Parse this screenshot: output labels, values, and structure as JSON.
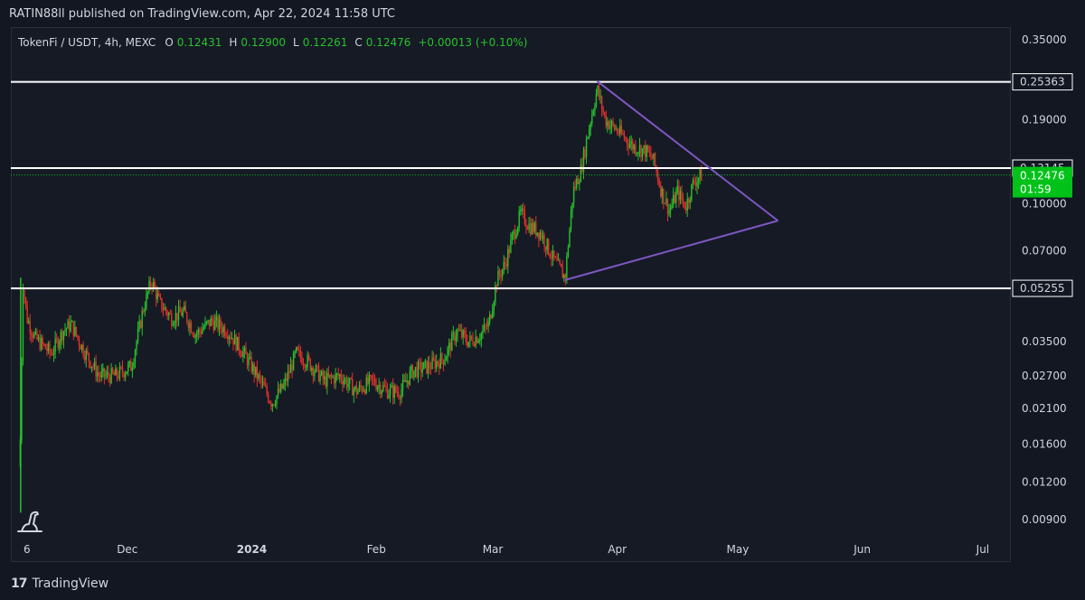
{
  "header": {
    "published": "RATIN88ll published on TradingView.com, Apr 22, 2024 11:58 UTC"
  },
  "legend": {
    "symbol": "TokenFi / USDT, 4h, MEXC",
    "open_key": "O",
    "open": "0.12431",
    "high_key": "H",
    "high": "0.12900",
    "low_key": "L",
    "low": "0.12261",
    "close_key": "C",
    "close": "0.12476",
    "change": "+0.00013 (+0.10%)"
  },
  "footer": {
    "brand_mark": "17",
    "brand": "TradingView"
  },
  "colors": {
    "background": "#131722",
    "up": "#26c22a",
    "down": "#e0312b",
    "level_line": "#ffffff",
    "triangle": "#7e57c2",
    "current_price_bg": "#00c218"
  },
  "chart_data": {
    "type": "candlestick",
    "symbol": "TokenFi / USDT",
    "interval": "4h",
    "exchange": "MEXC",
    "y_scale": "log",
    "ylim": [
      0.0078,
      0.385
    ],
    "y_ticks": [
      "0.35000",
      "0.19000",
      "0.10000",
      "0.07000",
      "0.03500",
      "0.02700",
      "0.02100",
      "0.01600",
      "0.01200",
      "0.00900"
    ],
    "y_tick_values": [
      0.35,
      0.19,
      0.1,
      0.07,
      0.035,
      0.027,
      0.021,
      0.016,
      0.012,
      0.009
    ],
    "x_ticks": [
      {
        "label": "6",
        "date": "2023-11-06",
        "bold": false
      },
      {
        "label": "Dec",
        "date": "2023-12-01",
        "bold": false
      },
      {
        "label": "2024",
        "date": "2024-01-01",
        "bold": true
      },
      {
        "label": "Feb",
        "date": "2024-02-01",
        "bold": false
      },
      {
        "label": "Mar",
        "date": "2024-03-01",
        "bold": false
      },
      {
        "label": "Apr",
        "date": "2024-04-01",
        "bold": false
      },
      {
        "label": "May",
        "date": "2024-05-01",
        "bold": false
      },
      {
        "label": "Jun",
        "date": "2024-06-01",
        "bold": false
      },
      {
        "label": "Jul",
        "date": "2024-07-01",
        "bold": false
      }
    ],
    "xlim": [
      "2023-11-02",
      "2024-07-08"
    ],
    "horizontal_levels": [
      {
        "value": 0.25363,
        "label": "0.25363"
      },
      {
        "value": 0.13145,
        "label": "0.13145"
      },
      {
        "value": 0.05255,
        "label": "0.05255"
      }
    ],
    "current_price": {
      "value": 0.12476,
      "label": "0.12476",
      "countdown": "01:59"
    },
    "triangle": {
      "upper": [
        {
          "date": "2024-03-27",
          "value": 0.255
        },
        {
          "date": "2024-05-11",
          "value": 0.088
        }
      ],
      "lower": [
        {
          "date": "2024-03-19",
          "value": 0.056
        },
        {
          "date": "2024-05-11",
          "value": 0.088
        }
      ]
    },
    "price_path": [
      {
        "date": "2023-11-04",
        "value": 0.009
      },
      {
        "date": "2023-11-05",
        "value": 0.055
      },
      {
        "date": "2023-11-06",
        "value": 0.042
      },
      {
        "date": "2023-11-08",
        "value": 0.036
      },
      {
        "date": "2023-11-12",
        "value": 0.032
      },
      {
        "date": "2023-11-15",
        "value": 0.038
      },
      {
        "date": "2023-11-17",
        "value": 0.04
      },
      {
        "date": "2023-11-20",
        "value": 0.033
      },
      {
        "date": "2023-11-24",
        "value": 0.027
      },
      {
        "date": "2023-11-28",
        "value": 0.027
      },
      {
        "date": "2023-12-02",
        "value": 0.029
      },
      {
        "date": "2023-12-05",
        "value": 0.045
      },
      {
        "date": "2023-12-07",
        "value": 0.056
      },
      {
        "date": "2023-12-09",
        "value": 0.047
      },
      {
        "date": "2023-12-12",
        "value": 0.042
      },
      {
        "date": "2023-12-15",
        "value": 0.044
      },
      {
        "date": "2023-12-18",
        "value": 0.037
      },
      {
        "date": "2023-12-22",
        "value": 0.041
      },
      {
        "date": "2023-12-26",
        "value": 0.038
      },
      {
        "date": "2023-12-30",
        "value": 0.032
      },
      {
        "date": "2024-01-03",
        "value": 0.026
      },
      {
        "date": "2024-01-06",
        "value": 0.022
      },
      {
        "date": "2024-01-09",
        "value": 0.025
      },
      {
        "date": "2024-01-12",
        "value": 0.032
      },
      {
        "date": "2024-01-15",
        "value": 0.03
      },
      {
        "date": "2024-01-19",
        "value": 0.026
      },
      {
        "date": "2024-01-23",
        "value": 0.027
      },
      {
        "date": "2024-01-27",
        "value": 0.024
      },
      {
        "date": "2024-01-31",
        "value": 0.026
      },
      {
        "date": "2024-02-04",
        "value": 0.024
      },
      {
        "date": "2024-02-07",
        "value": 0.024
      },
      {
        "date": "2024-02-10",
        "value": 0.028
      },
      {
        "date": "2024-02-14",
        "value": 0.029
      },
      {
        "date": "2024-02-18",
        "value": 0.031
      },
      {
        "date": "2024-02-21",
        "value": 0.038
      },
      {
        "date": "2024-02-24",
        "value": 0.035
      },
      {
        "date": "2024-02-27",
        "value": 0.037
      },
      {
        "date": "2024-02-29",
        "value": 0.04
      },
      {
        "date": "2024-03-02",
        "value": 0.056
      },
      {
        "date": "2024-03-04",
        "value": 0.063
      },
      {
        "date": "2024-03-06",
        "value": 0.078
      },
      {
        "date": "2024-03-08",
        "value": 0.093
      },
      {
        "date": "2024-03-10",
        "value": 0.085
      },
      {
        "date": "2024-03-13",
        "value": 0.08
      },
      {
        "date": "2024-03-16",
        "value": 0.066
      },
      {
        "date": "2024-03-19",
        "value": 0.057
      },
      {
        "date": "2024-03-21",
        "value": 0.11
      },
      {
        "date": "2024-03-23",
        "value": 0.13
      },
      {
        "date": "2024-03-25",
        "value": 0.18
      },
      {
        "date": "2024-03-27",
        "value": 0.24
      },
      {
        "date": "2024-03-29",
        "value": 0.19
      },
      {
        "date": "2024-04-02",
        "value": 0.17
      },
      {
        "date": "2024-04-05",
        "value": 0.155
      },
      {
        "date": "2024-04-08",
        "value": 0.15
      },
      {
        "date": "2024-04-10",
        "value": 0.14
      },
      {
        "date": "2024-04-12",
        "value": 0.11
      },
      {
        "date": "2024-04-14",
        "value": 0.095
      },
      {
        "date": "2024-04-16",
        "value": 0.11
      },
      {
        "date": "2024-04-18",
        "value": 0.098
      },
      {
        "date": "2024-04-20",
        "value": 0.118
      },
      {
        "date": "2024-04-22",
        "value": 0.12476
      }
    ]
  }
}
